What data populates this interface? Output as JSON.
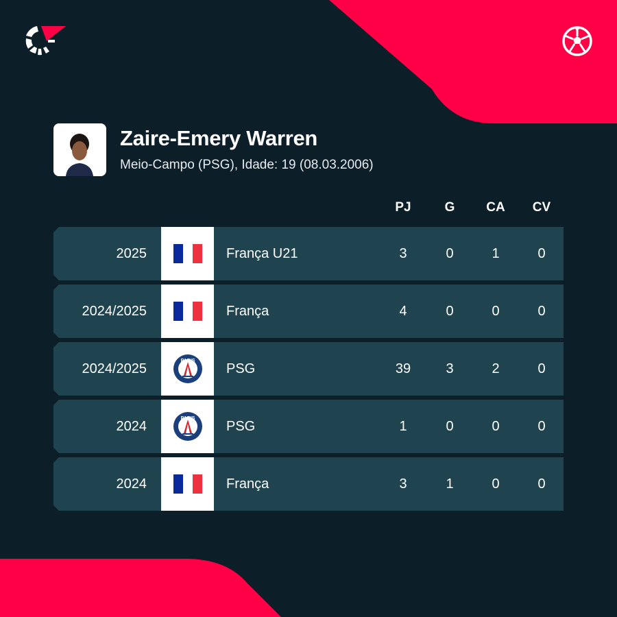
{
  "colors": {
    "background": "#0c1e28",
    "accent": "#ff0046",
    "row": "#1f4450"
  },
  "icons": {
    "brand": "flashscore-logo-icon",
    "sport": "soccer-ball-icon"
  },
  "player": {
    "name": "Zaire-Emery Warren",
    "details": "Meio-Campo (PSG), Idade: 19 (08.03.2006)"
  },
  "columns": [
    "PJ",
    "G",
    "CA",
    "CV"
  ],
  "psg_logo_text": "PARIS",
  "rows": [
    {
      "season": "2025",
      "team": "França U21",
      "crest": "france-flag",
      "pj": "3",
      "g": "0",
      "ca": "1",
      "cv": "0"
    },
    {
      "season": "2024/2025",
      "team": "França",
      "crest": "france-flag",
      "pj": "4",
      "g": "0",
      "ca": "0",
      "cv": "0"
    },
    {
      "season": "2024/2025",
      "team": "PSG",
      "crest": "psg-crest",
      "pj": "39",
      "g": "3",
      "ca": "2",
      "cv": "0"
    },
    {
      "season": "2024",
      "team": "PSG",
      "crest": "psg-crest",
      "pj": "1",
      "g": "0",
      "ca": "0",
      "cv": "0"
    },
    {
      "season": "2024",
      "team": "França",
      "crest": "france-flag",
      "pj": "3",
      "g": "1",
      "ca": "0",
      "cv": "0"
    }
  ]
}
